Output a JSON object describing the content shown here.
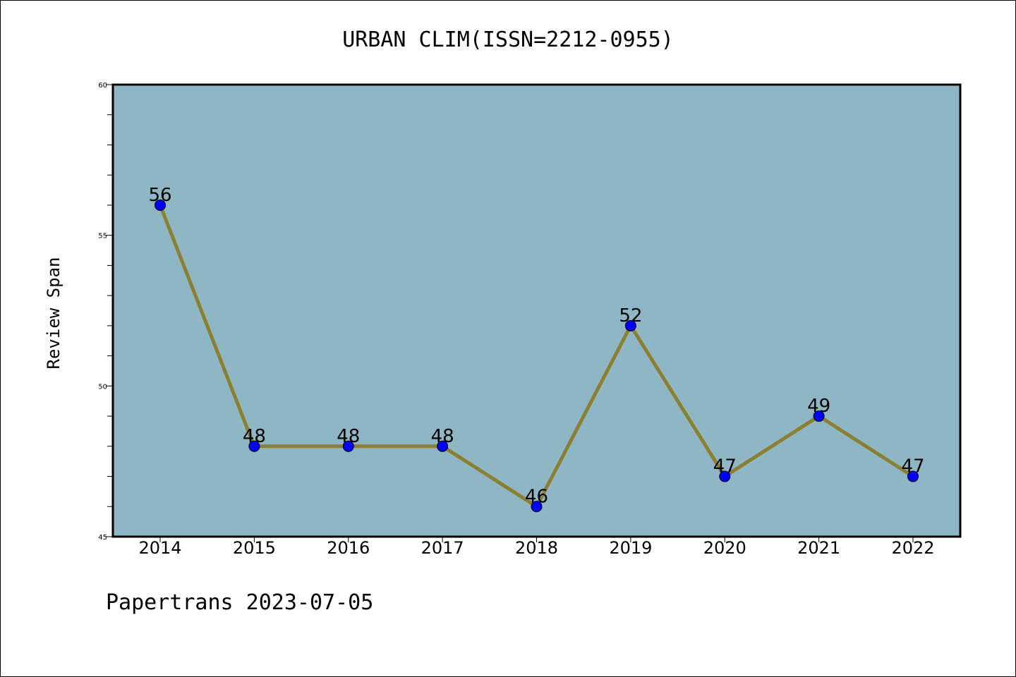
{
  "chart_data": {
    "type": "line",
    "title": "URBAN CLIM(ISSN=2212-0955)",
    "ylabel": "Review Span",
    "xlabel": "",
    "x": [
      "2014",
      "2015",
      "2016",
      "2017",
      "2018",
      "2019",
      "2020",
      "2021",
      "2022"
    ],
    "series": [
      {
        "values": [
          56,
          48,
          48,
          48,
          46,
          52,
          47,
          49,
          47
        ]
      }
    ],
    "ylim": [
      45,
      60
    ],
    "yticks": [
      45,
      50,
      55,
      60
    ],
    "data_labels": [
      "56",
      "48",
      "48",
      "48",
      "46",
      "52",
      "47",
      "49",
      "47"
    ],
    "grid": false,
    "legend": "none",
    "colors": {
      "plot_background": "#8fb6c4",
      "line": "#8b8032",
      "marker": "#0000ff"
    }
  },
  "footer": {
    "text": "Papertrans 2023-07-05"
  }
}
